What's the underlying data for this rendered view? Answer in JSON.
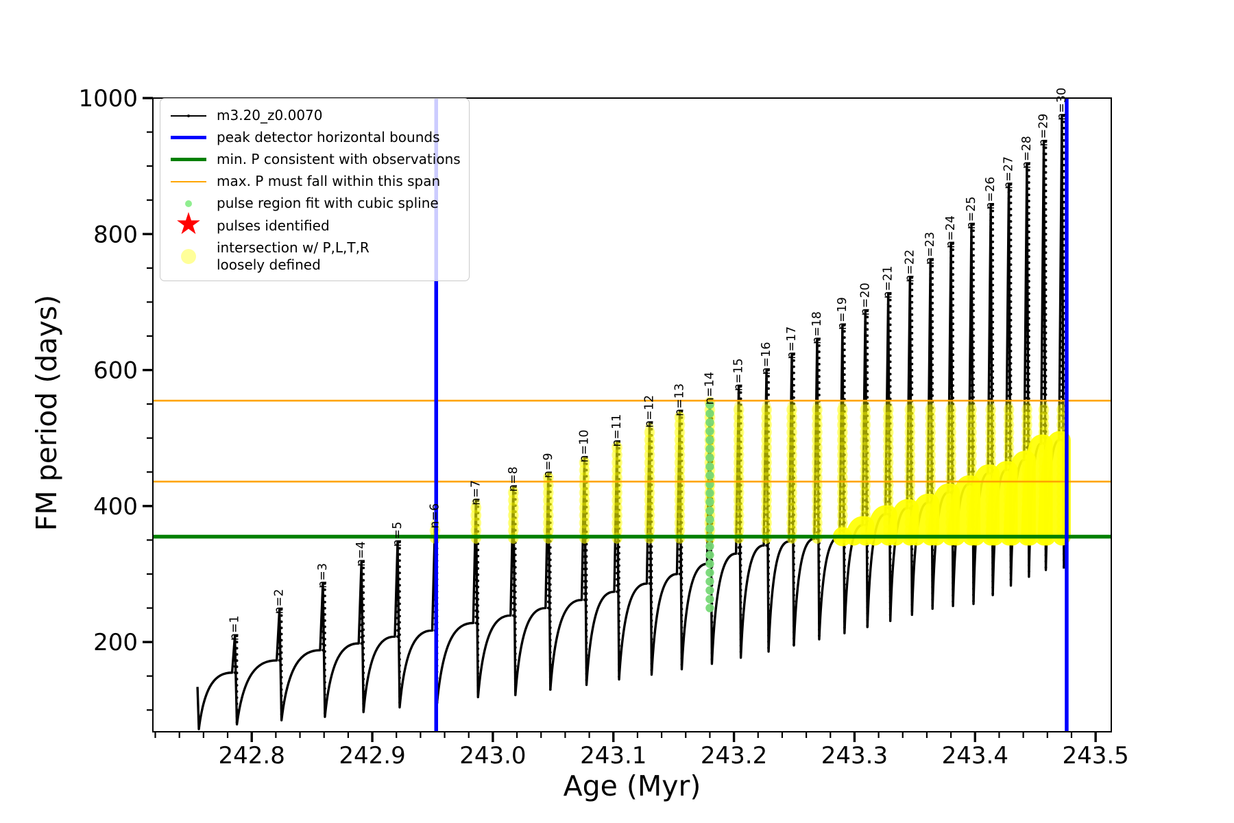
{
  "chart_data": {
    "type": "line",
    "title": "",
    "xlabel": "Age (Myr)",
    "ylabel": "FM period (days)",
    "xlim": [
      242.718,
      243.513
    ],
    "ylim": [
      68,
      1000
    ],
    "x_major_ticks": [
      242.8,
      242.9,
      243.0,
      243.1,
      243.2,
      243.3,
      243.4,
      243.5
    ],
    "x_minor_step": 0.02,
    "y_major_ticks": [
      200,
      400,
      600,
      800,
      1000
    ],
    "y_minor_step": 50,
    "grid": false,
    "legend_position": "upper left",
    "series_label": "m3.20_z0.0070",
    "overlays": {
      "blue_vlines": [
        242.953,
        243.476
      ],
      "green_hline": 355,
      "orange_hlines": [
        436,
        555
      ]
    },
    "start": {
      "age": 242.755,
      "period": 134,
      "dip": 72
    },
    "yellow_span_bottom": 355,
    "spline_pulse": {
      "n": 14,
      "age": 243.18,
      "from": 250,
      "to": 553
    },
    "pulses": [
      {
        "n": 1,
        "age": 242.786,
        "base": 155,
        "peak": 209,
        "dip": 79,
        "yellow_top": null,
        "arc_crest": null
      },
      {
        "n": 2,
        "age": 242.823,
        "base": 173,
        "peak": 248,
        "dip": 85,
        "yellow_top": null,
        "arc_crest": null
      },
      {
        "n": 3,
        "age": 242.859,
        "base": 188,
        "peak": 286,
        "dip": 90,
        "yellow_top": null,
        "arc_crest": null
      },
      {
        "n": 4,
        "age": 242.891,
        "base": 198,
        "peak": 318,
        "dip": 97,
        "yellow_top": null,
        "arc_crest": null
      },
      {
        "n": 5,
        "age": 242.921,
        "base": 208,
        "peak": 347,
        "dip": 104,
        "yellow_top": null,
        "arc_crest": null
      },
      {
        "n": 6,
        "age": 242.952,
        "base": 217,
        "peak": 374,
        "dip": 110,
        "yellow_top": 374,
        "arc_crest": null
      },
      {
        "n": 7,
        "age": 242.986,
        "base": 228,
        "peak": 408,
        "dip": 119,
        "yellow_top": 405,
        "arc_crest": null
      },
      {
        "n": 8,
        "age": 243.017,
        "base": 239,
        "peak": 428,
        "dip": 122,
        "yellow_top": 424,
        "arc_crest": null
      },
      {
        "n": 9,
        "age": 243.046,
        "base": 250,
        "peak": 448,
        "dip": 130,
        "yellow_top": 444,
        "arc_crest": null
      },
      {
        "n": 10,
        "age": 243.076,
        "base": 262,
        "peak": 471,
        "dip": 137,
        "yellow_top": 466,
        "arc_crest": null
      },
      {
        "n": 11,
        "age": 243.103,
        "base": 274,
        "peak": 494,
        "dip": 145,
        "yellow_top": 489,
        "arc_crest": null
      },
      {
        "n": 12,
        "age": 243.13,
        "base": 286,
        "peak": 522,
        "dip": 152,
        "yellow_top": 516,
        "arc_crest": null
      },
      {
        "n": 13,
        "age": 243.155,
        "base": 300,
        "peak": 539,
        "dip": 160,
        "yellow_top": 533,
        "arc_crest": null
      },
      {
        "n": 14,
        "age": 243.18,
        "base": 315,
        "peak": 556,
        "dip": 168,
        "yellow_top": 553,
        "arc_crest": null
      },
      {
        "n": 15,
        "age": 243.204,
        "base": 330,
        "peak": 576,
        "dip": 177,
        "yellow_top": 548,
        "arc_crest": null
      },
      {
        "n": 16,
        "age": 243.227,
        "base": 342,
        "peak": 600,
        "dip": 186,
        "yellow_top": 548,
        "arc_crest": null
      },
      {
        "n": 17,
        "age": 243.248,
        "base": 348,
        "peak": 623,
        "dip": 195,
        "yellow_top": 548,
        "arc_crest": null
      },
      {
        "n": 18,
        "age": 243.269,
        "base": 352,
        "peak": 645,
        "dip": 204,
        "yellow_top": 548,
        "arc_crest": null
      },
      {
        "n": 19,
        "age": 243.29,
        "base": 355,
        "peak": 666,
        "dip": 213,
        "yellow_top": 548,
        "arc_crest": 355
      },
      {
        "n": 20,
        "age": 243.309,
        "base": 372,
        "peak": 687,
        "dip": 222,
        "yellow_top": 548,
        "arc_crest": 372
      },
      {
        "n": 21,
        "age": 243.328,
        "base": 388,
        "peak": 712,
        "dip": 231,
        "yellow_top": 548,
        "arc_crest": 388
      },
      {
        "n": 22,
        "age": 243.346,
        "base": 397,
        "peak": 736,
        "dip": 240,
        "yellow_top": 548,
        "arc_crest": 397
      },
      {
        "n": 23,
        "age": 243.363,
        "base": 405,
        "peak": 762,
        "dip": 249,
        "yellow_top": 548,
        "arc_crest": 405
      },
      {
        "n": 24,
        "age": 243.38,
        "base": 420,
        "peak": 786,
        "dip": 253,
        "yellow_top": 548,
        "arc_crest": 420
      },
      {
        "n": 25,
        "age": 243.397,
        "base": 432,
        "peak": 814,
        "dip": 256,
        "yellow_top": 548,
        "arc_crest": 432
      },
      {
        "n": 26,
        "age": 243.413,
        "base": 448,
        "peak": 843,
        "dip": 269,
        "yellow_top": 548,
        "arc_crest": 448
      },
      {
        "n": 27,
        "age": 243.428,
        "base": 453,
        "peak": 873,
        "dip": 283,
        "yellow_top": 548,
        "arc_crest": 453
      },
      {
        "n": 28,
        "age": 243.443,
        "base": 468,
        "peak": 903,
        "dip": 296,
        "yellow_top": 548,
        "arc_crest": 468
      },
      {
        "n": 29,
        "age": 243.457,
        "base": 492,
        "peak": 936,
        "dip": 306,
        "yellow_top": 548,
        "arc_crest": 492
      },
      {
        "n": 30,
        "age": 243.472,
        "base": 497,
        "peak": 974,
        "dip": 308,
        "yellow_top": 548,
        "arc_crest": 497
      }
    ],
    "colors": {
      "series": "#000000",
      "peak_bounds": "#0000ff",
      "min_p": "#008000",
      "max_p_span": "#ffa500",
      "spline_dots": "#77d977",
      "pulses_star": "#ff0000",
      "intersection": "#ffff00"
    }
  },
  "legend": {
    "items": [
      {
        "type": "line-dot",
        "color": "#000000",
        "label": "m3.20_z0.0070"
      },
      {
        "type": "thick-line",
        "color": "#0000ff",
        "label": "peak detector horizontal bounds"
      },
      {
        "type": "thick-line",
        "color": "#008000",
        "label": "min. P consistent with observations"
      },
      {
        "type": "line",
        "color": "#ffa500",
        "label": "max. P must fall within this span"
      },
      {
        "type": "dot-small",
        "color": "#90ee90",
        "label": "pulse region fit with cubic spline"
      },
      {
        "type": "star",
        "color": "#ff0000",
        "label": "pulses identified"
      },
      {
        "type": "dot-big",
        "color": "rgba(255,255,0,0.4)",
        "label": "intersection w/ P,L,T,R\nloosely defined"
      }
    ]
  }
}
